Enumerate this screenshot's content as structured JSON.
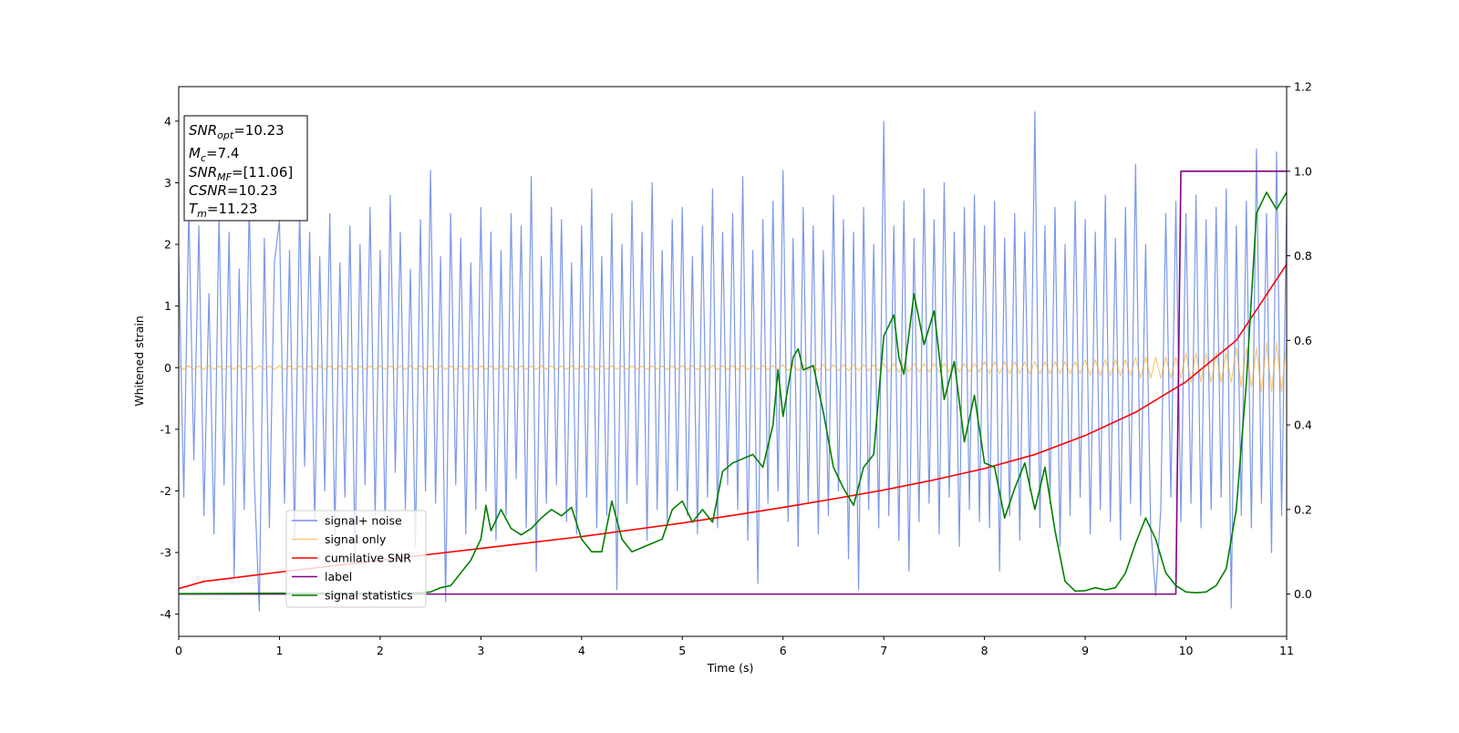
{
  "chart_data": {
    "type": "line",
    "xlabel": "Time (s)",
    "ylabel": "Whitened strain",
    "xlim": [
      0,
      11
    ],
    "xticks": [
      0,
      1,
      2,
      3,
      4,
      5,
      6,
      7,
      8,
      9,
      10,
      11
    ],
    "ylim": [
      -4.36,
      4.56
    ],
    "yticks": [
      -4,
      -3,
      -2,
      -1,
      0,
      1,
      2,
      3,
      4
    ],
    "y2lim": [
      -0.1,
      1.2
    ],
    "y2ticks": [
      {
        "value": 0,
        "label": "0.0"
      },
      {
        "value": 0.2,
        "label": "0.2"
      },
      {
        "value": 0.4,
        "label": "0.4"
      },
      {
        "value": 0.6,
        "label": "0.6"
      },
      {
        "value": 0.8,
        "label": "0.8"
      },
      {
        "value": 1.0,
        "label": "1.0"
      },
      {
        "value": 1.2,
        "label": "1.2"
      }
    ],
    "annotations": [
      {
        "main": "SNR",
        "sub": "opt",
        "rest": "=10.23"
      },
      {
        "main": "M",
        "sub": "c",
        "rest": "=7.4"
      },
      {
        "main": "SNR",
        "sub": "MF",
        "rest": "=[11.06]"
      },
      {
        "main": "CSNR",
        "sub": "",
        "rest": "=10.23"
      },
      {
        "main": "T",
        "sub": "m",
        "rest": "=11.23"
      }
    ],
    "x": [
      0,
      0.05,
      0.1,
      0.15,
      0.2,
      0.25,
      0.3,
      0.35,
      0.4,
      0.45,
      0.5,
      0.55,
      0.6,
      0.65,
      0.7,
      0.75,
      0.8,
      0.85,
      0.9,
      0.95,
      1,
      1.05,
      1.1,
      1.15,
      1.2,
      1.25,
      1.3,
      1.35,
      1.4,
      1.45,
      1.5,
      1.55,
      1.6,
      1.65,
      1.7,
      1.75,
      1.8,
      1.85,
      1.9,
      1.95,
      2,
      2.05,
      2.1,
      2.15,
      2.2,
      2.25,
      2.3,
      2.35,
      2.4,
      2.45,
      2.5,
      2.55,
      2.6,
      2.65,
      2.7,
      2.75,
      2.8,
      2.85,
      2.9,
      2.95,
      3,
      3.05,
      3.1,
      3.15,
      3.2,
      3.25,
      3.3,
      3.35,
      3.4,
      3.45,
      3.5,
      3.55,
      3.6,
      3.65,
      3.7,
      3.75,
      3.8,
      3.85,
      3.9,
      3.95,
      4,
      4.05,
      4.1,
      4.15,
      4.2,
      4.25,
      4.3,
      4.35,
      4.4,
      4.45,
      4.5,
      4.55,
      4.6,
      4.65,
      4.7,
      4.75,
      4.8,
      4.85,
      4.9,
      4.95,
      5,
      5.05,
      5.1,
      5.15,
      5.2,
      5.25,
      5.3,
      5.35,
      5.4,
      5.45,
      5.5,
      5.55,
      5.6,
      5.65,
      5.7,
      5.75,
      5.8,
      5.85,
      5.9,
      5.95,
      6,
      6.05,
      6.1,
      6.15,
      6.2,
      6.25,
      6.3,
      6.35,
      6.4,
      6.45,
      6.5,
      6.55,
      6.6,
      6.65,
      6.7,
      6.75,
      6.8,
      6.85,
      6.9,
      6.95,
      7,
      7.05,
      7.1,
      7.15,
      7.2,
      7.25,
      7.3,
      7.35,
      7.4,
      7.45,
      7.5,
      7.55,
      7.6,
      7.65,
      7.7,
      7.75,
      7.8,
      7.85,
      7.9,
      7.95,
      8,
      8.05,
      8.1,
      8.15,
      8.2,
      8.25,
      8.3,
      8.35,
      8.4,
      8.45,
      8.5,
      8.55,
      8.6,
      8.65,
      8.7,
      8.75,
      8.8,
      8.85,
      8.9,
      8.95,
      9,
      9.05,
      9.1,
      9.15,
      9.2,
      9.25,
      9.3,
      9.35,
      9.4,
      9.45,
      9.5,
      9.55,
      9.6,
      9.65,
      9.7,
      9.75,
      9.8,
      9.85,
      9.9,
      9.95,
      10,
      10.05,
      10.1,
      10.15,
      10.2,
      10.25,
      10.3,
      10.35,
      10.4,
      10.45,
      10.5,
      10.55,
      10.6,
      10.65,
      10.7,
      10.75,
      10.8,
      10.85,
      10.9,
      10.95,
      11
    ],
    "series": [
      {
        "name": "signal+ noise",
        "color": "#7592e8",
        "values": [
          1.8,
          -2.1,
          2.6,
          -1.5,
          2.3,
          -2.4,
          1.2,
          -2.7,
          2.5,
          -1.9,
          2.2,
          -3.4,
          1.6,
          -2.3,
          2.7,
          -1.8,
          -3.95,
          2.1,
          -2.6,
          1.7,
          2.4,
          -2.2,
          1.9,
          -2.8,
          2.6,
          -1.6,
          2.2,
          -2.5,
          1.8,
          -2.0,
          2.5,
          -2.7,
          1.7,
          -2.1,
          2.3,
          -3.0,
          2.0,
          -1.9,
          2.6,
          -2.4,
          1.9,
          -2.6,
          2.8,
          -1.7,
          2.2,
          -2.3,
          1.6,
          -2.9,
          2.4,
          -2.0,
          3.2,
          -2.2,
          1.8,
          -3.8,
          2.5,
          -1.9,
          2.1,
          -2.7,
          1.7,
          -2.3,
          2.6,
          -2.0,
          2.2,
          -2.8,
          1.9,
          -2.4,
          2.5,
          -1.8,
          2.3,
          -2.6,
          3.1,
          -3.3,
          1.8,
          -2.2,
          2.6,
          -1.9,
          2.4,
          -2.5,
          1.7,
          -2.7,
          2.3,
          -2.1,
          2.9,
          -2.6,
          1.8,
          -2.4,
          2.5,
          -3.6,
          2.0,
          -2.2,
          2.7,
          -1.9,
          2.2,
          -2.8,
          3.0,
          -2.3,
          1.9,
          -2.5,
          2.4,
          -2.0,
          2.6,
          -2.4,
          1.8,
          -2.7,
          2.3,
          -2.1,
          2.9,
          -2.6,
          2.2,
          -1.9,
          2.5,
          -2.3,
          3.1,
          -2.8,
          1.9,
          -3.5,
          2.4,
          -2.2,
          2.7,
          -2.0,
          3.2,
          -2.5,
          2.1,
          -2.9,
          2.6,
          -2.2,
          2.3,
          -2.7,
          1.9,
          -2.4,
          2.8,
          -2.0,
          2.4,
          -3.1,
          2.2,
          -3.6,
          2.6,
          -2.3,
          2.0,
          -2.6,
          4.0,
          -2.4,
          2.3,
          -2.8,
          2.7,
          -3.3,
          2.1,
          -2.5,
          2.9,
          -2.2,
          2.4,
          -2.7,
          3.0,
          -2.1,
          2.2,
          -2.9,
          2.6,
          -2.3,
          2.8,
          -2.5,
          2.3,
          -2.6,
          2.7,
          -3.3,
          2.1,
          -2.4,
          2.5,
          -2.8,
          2.2,
          -2.0,
          4.15,
          -2.6,
          2.3,
          -2.2,
          2.6,
          -2.9,
          2.0,
          -2.4,
          2.7,
          -2.1,
          2.4,
          -2.7,
          2.2,
          -2.3,
          2.8,
          -2.5,
          2.1,
          -2.8,
          2.6,
          -2.2,
          3.3,
          -2.4,
          2.0,
          -2.6,
          -3.7,
          -2.3,
          2.5,
          -2.1,
          2.7,
          -2.5,
          2.5,
          -2.2,
          2.8,
          -2.6,
          2.4,
          -2.3,
          2.6,
          -2.1,
          2.9,
          -3.9,
          2.3,
          -2.4,
          2.7,
          -2.6,
          3.55,
          -2.2,
          2.5,
          -3.0,
          3.5,
          -2.4,
          2.6
        ]
      },
      {
        "name": "signal only",
        "color": "#f5a623",
        "values": [
          0.03,
          -0.03,
          0.03,
          -0.03,
          0.03,
          -0.03,
          0.03,
          -0.03,
          0.03,
          -0.03,
          0.03,
          -0.03,
          0.03,
          -0.03,
          0.03,
          -0.03,
          0.03,
          -0.03,
          0.03,
          -0.03,
          0.03,
          -0.03,
          0.03,
          -0.03,
          0.03,
          -0.03,
          0.03,
          -0.03,
          0.03,
          -0.03,
          0.03,
          -0.03,
          0.03,
          -0.03,
          0.03,
          -0.03,
          0.03,
          -0.03,
          0.03,
          -0.03,
          0.03,
          -0.03,
          0.03,
          -0.03,
          0.03,
          -0.03,
          0.03,
          -0.03,
          0.03,
          -0.03,
          0.03,
          -0.03,
          0.03,
          -0.03,
          0.03,
          -0.03,
          0.03,
          -0.03,
          0.03,
          -0.03,
          0.03,
          -0.03,
          0.03,
          -0.03,
          0.03,
          -0.03,
          0.03,
          -0.03,
          0.03,
          -0.03,
          0.03,
          -0.03,
          0.03,
          -0.03,
          0.03,
          -0.03,
          0.03,
          -0.03,
          0.03,
          -0.03,
          0.03,
          -0.03,
          0.03,
          -0.03,
          0.03,
          -0.03,
          0.03,
          -0.03,
          0.03,
          -0.03,
          0.03,
          -0.03,
          0.03,
          -0.03,
          0.03,
          -0.03,
          0.03,
          -0.03,
          0.03,
          -0.03,
          0.035,
          -0.035,
          0.035,
          -0.035,
          0.035,
          -0.035,
          0.035,
          -0.035,
          0.035,
          -0.035,
          0.035,
          -0.035,
          0.035,
          -0.035,
          0.035,
          -0.035,
          0.035,
          -0.035,
          0.035,
          -0.035,
          0.05,
          -0.05,
          0.05,
          -0.05,
          0.05,
          -0.05,
          0.05,
          -0.05,
          0.05,
          -0.05,
          0.05,
          -0.05,
          0.05,
          -0.05,
          0.05,
          -0.05,
          0.05,
          -0.05,
          0.05,
          -0.05,
          0.07,
          -0.07,
          0.07,
          -0.07,
          0.07,
          -0.07,
          0.07,
          -0.07,
          0.07,
          -0.07,
          0.07,
          -0.07,
          0.07,
          -0.07,
          0.07,
          -0.07,
          0.07,
          -0.07,
          0.07,
          -0.07,
          0.1,
          -0.1,
          0.1,
          -0.1,
          0.1,
          -0.1,
          0.1,
          -0.1,
          0.1,
          -0.1,
          0.1,
          -0.1,
          0.1,
          -0.1,
          0.1,
          -0.1,
          0.1,
          -0.1,
          0.1,
          -0.1,
          0.13,
          -0.13,
          0.13,
          -0.13,
          0.13,
          -0.13,
          0.13,
          -0.13,
          0.13,
          -0.13,
          0.17,
          -0.17,
          0.17,
          -0.17,
          0.17,
          -0.17,
          0.17,
          -0.17,
          0.17,
          -0.17,
          0.24,
          -0.24,
          0.24,
          -0.24,
          0.24,
          -0.24,
          0.24,
          -0.24,
          0.24,
          -0.24,
          0.32,
          -0.32,
          0.32,
          -0.32,
          0.32,
          -0.4,
          0.4,
          -0.4,
          0.4,
          -0.4,
          0.4
        ]
      },
      {
        "name": "cumilative SNR",
        "color": "#ff0000",
        "axis": "y2",
        "x": [
          0,
          0.25,
          0.5,
          1,
          1.5,
          2,
          2.5,
          3,
          3.5,
          4,
          4.5,
          5,
          5.5,
          6,
          6.5,
          7,
          7.5,
          8,
          8.5,
          9,
          9.5,
          10,
          10.5,
          11
        ],
        "values": [
          0.013,
          0.03,
          0.037,
          0.052,
          0.066,
          0.08,
          0.094,
          0.108,
          0.122,
          0.136,
          0.152,
          0.168,
          0.186,
          0.205,
          0.225,
          0.246,
          0.27,
          0.297,
          0.33,
          0.375,
          0.43,
          0.502,
          0.6,
          0.78
        ]
      },
      {
        "name": "label",
        "color": "#800080",
        "axis": "y2",
        "x": [
          0,
          9.9,
          9.95,
          11
        ],
        "values": [
          0,
          0,
          1,
          1
        ]
      },
      {
        "name": "signal statistics",
        "color": "#008000",
        "axis": "y2",
        "x": [
          0,
          1,
          2,
          2.4,
          2.5,
          2.6,
          2.7,
          2.8,
          2.9,
          3.0,
          3.05,
          3.1,
          3.2,
          3.3,
          3.4,
          3.5,
          3.6,
          3.7,
          3.8,
          3.9,
          4.0,
          4.1,
          4.2,
          4.3,
          4.4,
          4.5,
          4.6,
          4.7,
          4.8,
          4.9,
          5.0,
          5.1,
          5.2,
          5.3,
          5.4,
          5.5,
          5.6,
          5.7,
          5.8,
          5.9,
          5.95,
          6.0,
          6.1,
          6.15,
          6.2,
          6.3,
          6.4,
          6.5,
          6.6,
          6.7,
          6.8,
          6.9,
          7.0,
          7.1,
          7.15,
          7.2,
          7.3,
          7.4,
          7.5,
          7.6,
          7.7,
          7.8,
          7.9,
          8.0,
          8.1,
          8.2,
          8.3,
          8.4,
          8.5,
          8.6,
          8.7,
          8.8,
          8.9,
          9.0,
          9.1,
          9.2,
          9.3,
          9.4,
          9.5,
          9.6,
          9.7,
          9.8,
          9.9,
          10.0,
          10.1,
          10.2,
          10.3,
          10.4,
          10.5,
          10.6,
          10.7,
          10.8,
          10.9,
          11.0
        ],
        "values": [
          0.001,
          0.002,
          0.002,
          0.003,
          0.005,
          0.015,
          0.02,
          0.05,
          0.08,
          0.13,
          0.21,
          0.15,
          0.2,
          0.155,
          0.14,
          0.155,
          0.18,
          0.2,
          0.185,
          0.205,
          0.13,
          0.1,
          0.1,
          0.22,
          0.13,
          0.1,
          0.11,
          0.12,
          0.13,
          0.2,
          0.22,
          0.17,
          0.2,
          0.17,
          0.29,
          0.31,
          0.32,
          0.33,
          0.3,
          0.4,
          0.53,
          0.42,
          0.56,
          0.58,
          0.53,
          0.54,
          0.43,
          0.3,
          0.25,
          0.21,
          0.3,
          0.33,
          0.61,
          0.66,
          0.56,
          0.52,
          0.71,
          0.59,
          0.67,
          0.46,
          0.55,
          0.36,
          0.47,
          0.31,
          0.3,
          0.18,
          0.25,
          0.31,
          0.2,
          0.3,
          0.15,
          0.03,
          0.007,
          0.008,
          0.015,
          0.01,
          0.015,
          0.05,
          0.12,
          0.18,
          0.13,
          0.05,
          0.02,
          0.005,
          0.003,
          0.005,
          0.02,
          0.06,
          0.2,
          0.5,
          0.9,
          0.95,
          0.91,
          0.95
        ]
      }
    ]
  }
}
